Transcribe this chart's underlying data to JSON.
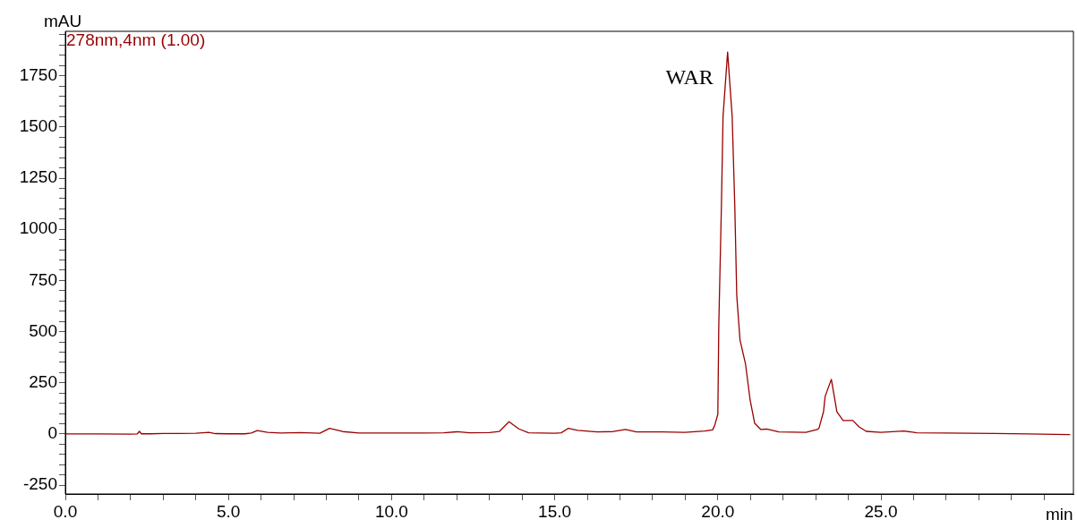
{
  "chart_data": {
    "type": "line",
    "xlabel": "min",
    "ylabel": "mAU",
    "legend": "top left",
    "marker": "none",
    "line_style": "solid",
    "grid": false,
    "xlim": [
      0,
      30.9
    ],
    "ylim": [
      -293,
      1967
    ],
    "xticks": [
      {
        "value": 0,
        "label": "0.0"
      },
      {
        "value": 1,
        "label": null
      },
      {
        "value": 2,
        "label": null
      },
      {
        "value": 3,
        "label": null
      },
      {
        "value": 4,
        "label": null
      },
      {
        "value": 5,
        "label": "5.0"
      },
      {
        "value": 6,
        "label": null
      },
      {
        "value": 7,
        "label": null
      },
      {
        "value": 8,
        "label": null
      },
      {
        "value": 9,
        "label": null
      },
      {
        "value": 10,
        "label": "10.0"
      },
      {
        "value": 11,
        "label": null
      },
      {
        "value": 12,
        "label": null
      },
      {
        "value": 13,
        "label": null
      },
      {
        "value": 14,
        "label": null
      },
      {
        "value": 15,
        "label": "15.0"
      },
      {
        "value": 16,
        "label": null
      },
      {
        "value": 17,
        "label": null
      },
      {
        "value": 18,
        "label": null
      },
      {
        "value": 19,
        "label": null
      },
      {
        "value": 20,
        "label": "20.0"
      },
      {
        "value": 21,
        "label": null
      },
      {
        "value": 22,
        "label": null
      },
      {
        "value": 23,
        "label": null
      },
      {
        "value": 24,
        "label": null
      },
      {
        "value": 25,
        "label": "25.0"
      },
      {
        "value": 26,
        "label": null
      },
      {
        "value": 27,
        "label": null
      },
      {
        "value": 28,
        "label": null
      },
      {
        "value": 29,
        "label": null
      },
      {
        "value": 30,
        "label": null
      }
    ],
    "yticks": [
      {
        "value": -250,
        "label": "-250"
      },
      {
        "value": -200,
        "label": null
      },
      {
        "value": -150,
        "label": null
      },
      {
        "value": -100,
        "label": null
      },
      {
        "value": -50,
        "label": null
      },
      {
        "value": 0,
        "label": "0"
      },
      {
        "value": 50,
        "label": null
      },
      {
        "value": 100,
        "label": null
      },
      {
        "value": 150,
        "label": null
      },
      {
        "value": 200,
        "label": null
      },
      {
        "value": 250,
        "label": "250"
      },
      {
        "value": 300,
        "label": null
      },
      {
        "value": 350,
        "label": null
      },
      {
        "value": 400,
        "label": null
      },
      {
        "value": 450,
        "label": null
      },
      {
        "value": 500,
        "label": "500"
      },
      {
        "value": 550,
        "label": null
      },
      {
        "value": 600,
        "label": null
      },
      {
        "value": 650,
        "label": null
      },
      {
        "value": 700,
        "label": null
      },
      {
        "value": 750,
        "label": "750"
      },
      {
        "value": 800,
        "label": null
      },
      {
        "value": 850,
        "label": null
      },
      {
        "value": 900,
        "label": null
      },
      {
        "value": 950,
        "label": null
      },
      {
        "value": 1000,
        "label": "1000"
      },
      {
        "value": 1050,
        "label": null
      },
      {
        "value": 1100,
        "label": null
      },
      {
        "value": 1150,
        "label": null
      },
      {
        "value": 1200,
        "label": null
      },
      {
        "value": 1250,
        "label": "1250"
      },
      {
        "value": 1300,
        "label": null
      },
      {
        "value": 1350,
        "label": null
      },
      {
        "value": 1400,
        "label": null
      },
      {
        "value": 1450,
        "label": null
      },
      {
        "value": 1500,
        "label": "1500"
      },
      {
        "value": 1550,
        "label": null
      },
      {
        "value": 1600,
        "label": null
      },
      {
        "value": 1650,
        "label": null
      },
      {
        "value": 1700,
        "label": null
      },
      {
        "value": 1750,
        "label": "1750"
      },
      {
        "value": 1800,
        "label": null
      },
      {
        "value": 1850,
        "label": null
      },
      {
        "value": 1900,
        "label": null
      },
      {
        "value": 1950,
        "label": null
      }
    ],
    "annotations": [
      {
        "text": "WAR",
        "x": 20.3,
        "y": 1866
      }
    ],
    "series": [
      {
        "name": "278nm,4nm (1.00)",
        "color": "#990000",
        "x": [
          0,
          1,
          2,
          2.2,
          2.27,
          2.33,
          2.6,
          3,
          3.5,
          4,
          4.4,
          4.6,
          5,
          5.5,
          5.7,
          5.88,
          6.2,
          6.6,
          7.2,
          7.8,
          8.1,
          8.5,
          9,
          10,
          11,
          11.6,
          12,
          12.4,
          13,
          13.3,
          13.6,
          13.9,
          14.2,
          15,
          15.2,
          15.42,
          15.7,
          16.3,
          16.8,
          17.17,
          17.5,
          18.3,
          19,
          19.6,
          19.84,
          19.9,
          20,
          20.03,
          20.11,
          20.16,
          20.3,
          20.44,
          20.52,
          20.58,
          20.68,
          20.85,
          20.99,
          21.13,
          21.32,
          21.5,
          21.87,
          22.7,
          23.05,
          23.1,
          23.24,
          23.29,
          23.48,
          23.65,
          23.84,
          24.14,
          24.33,
          24.55,
          25,
          25.7,
          26.1,
          27,
          28.5,
          29.5,
          30.8
        ],
        "values": [
          0,
          0,
          -1,
          0,
          13,
          1,
          1,
          3,
          3,
          4,
          8,
          2,
          1,
          1,
          5,
          17,
          8,
          5,
          7,
          4,
          28,
          12,
          5,
          5,
          5,
          6,
          11,
          6,
          7,
          12,
          60,
          25,
          6,
          4,
          6,
          28,
          18,
          10,
          12,
          22,
          10,
          10,
          8,
          15,
          20,
          40,
          96,
          533,
          1115,
          1551,
          1866,
          1551,
          1115,
          677,
          459,
          341,
          166,
          52,
          22,
          24,
          10,
          8,
          22,
          28,
          109,
          184,
          267,
          109,
          66,
          66,
          35,
          13,
          8,
          15,
          6,
          5,
          3,
          0,
          -3
        ]
      }
    ]
  }
}
